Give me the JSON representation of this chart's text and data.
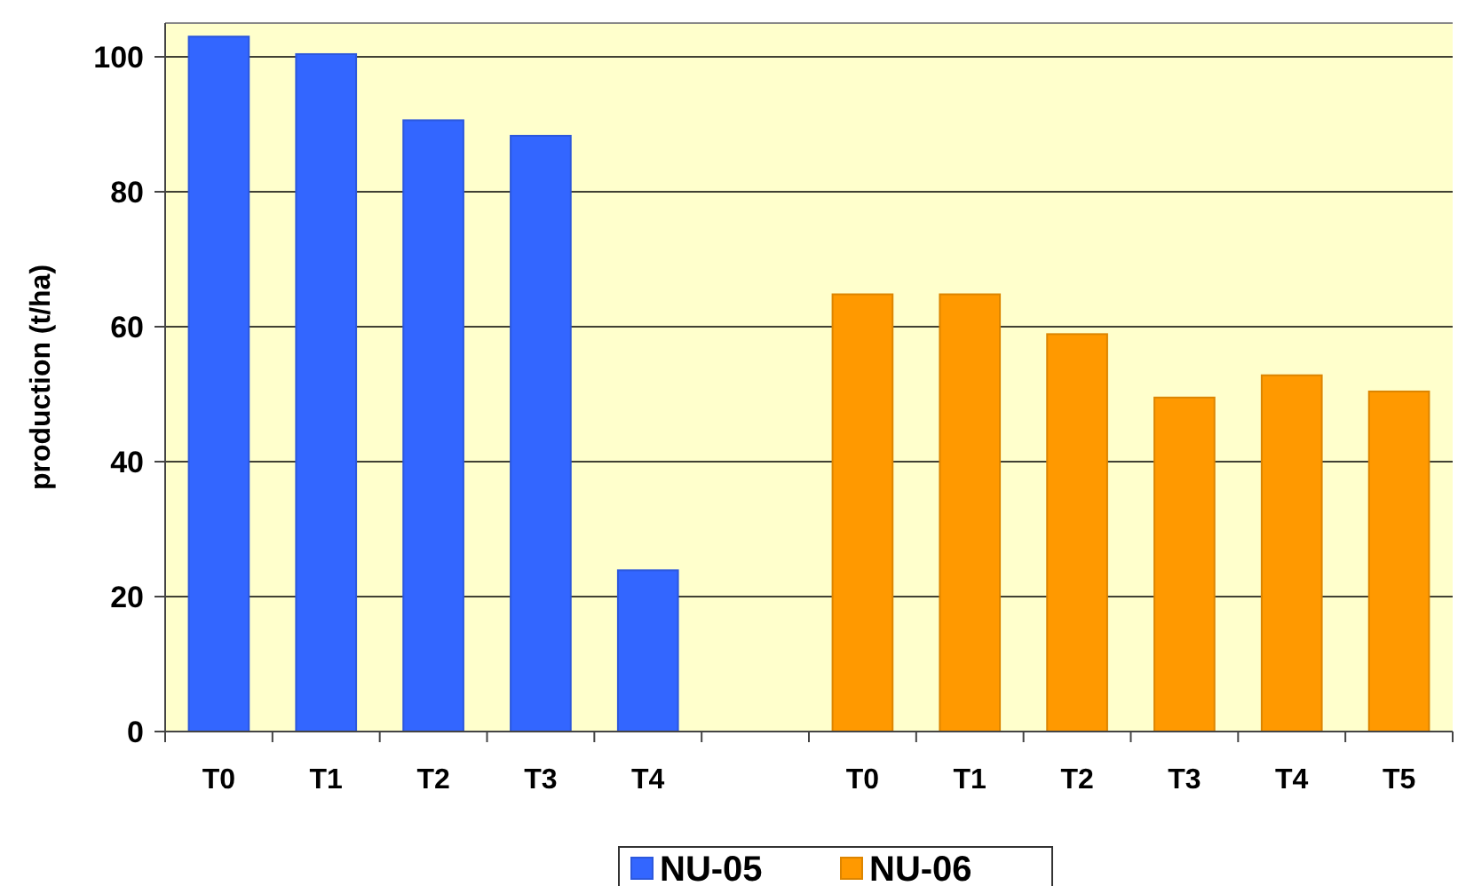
{
  "chart_data": {
    "type": "bar",
    "ylabel": "production (t/ha)",
    "categories": [
      "T0",
      "T1",
      "T2",
      "T3",
      "T4",
      null,
      "T0",
      "T1",
      "T2",
      "T3",
      "T4",
      "T5"
    ],
    "series": [
      {
        "name": "NU-05",
        "color": "#3366ff",
        "values": [
          103.0,
          100.4,
          90.6,
          88.3,
          23.9,
          null,
          null,
          null,
          null,
          null,
          null,
          null
        ]
      },
      {
        "name": "NU-06",
        "color": "#ff9900",
        "values": [
          null,
          null,
          null,
          null,
          null,
          null,
          64.8,
          64.8,
          58.9,
          49.5,
          52.8,
          50.4
        ]
      }
    ],
    "ylim": [
      0,
      105
    ],
    "yticks": [
      0,
      20,
      40,
      60,
      80,
      100
    ],
    "grid": "y",
    "legend": "bottom"
  }
}
